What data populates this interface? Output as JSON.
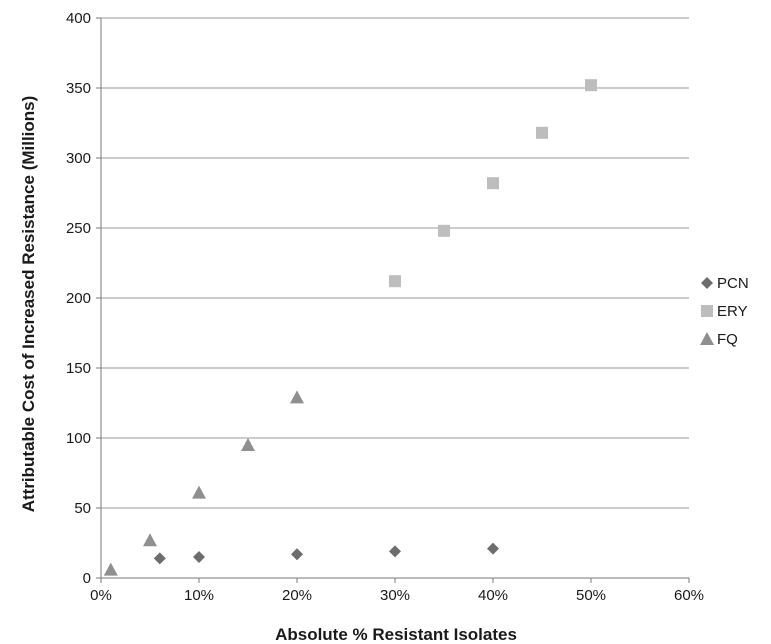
{
  "chart_data": {
    "type": "scatter",
    "title": "",
    "xlabel": "Absolute % Resistant Isolates",
    "ylabel": "Attributable Cost of Increased Resistance (Millions)",
    "xlim": [
      0,
      0.6
    ],
    "ylim": [
      0,
      400
    ],
    "x_ticks": [
      "0%",
      "10%",
      "20%",
      "30%",
      "40%",
      "50%",
      "60%"
    ],
    "y_ticks": [
      "0",
      "50",
      "100",
      "150",
      "200",
      "250",
      "300",
      "350",
      "400"
    ],
    "grid": "horizontal",
    "legend_position": "right",
    "series": [
      {
        "name": "PCN",
        "marker": "diamond",
        "color": "#6d6d6d",
        "points": [
          {
            "x": 0.06,
            "y": 14
          },
          {
            "x": 0.1,
            "y": 15
          },
          {
            "x": 0.2,
            "y": 17
          },
          {
            "x": 0.3,
            "y": 19
          },
          {
            "x": 0.4,
            "y": 21
          }
        ]
      },
      {
        "name": "ERY",
        "marker": "square",
        "color": "#bdbdbd",
        "points": [
          {
            "x": 0.3,
            "y": 212
          },
          {
            "x": 0.35,
            "y": 248
          },
          {
            "x": 0.4,
            "y": 282
          },
          {
            "x": 0.45,
            "y": 318
          },
          {
            "x": 0.5,
            "y": 352
          }
        ]
      },
      {
        "name": "FQ",
        "marker": "triangle",
        "color": "#8f8f8f",
        "points": [
          {
            "x": 0.01,
            "y": 6
          },
          {
            "x": 0.05,
            "y": 27
          },
          {
            "x": 0.1,
            "y": 61
          },
          {
            "x": 0.15,
            "y": 95
          },
          {
            "x": 0.2,
            "y": 129
          }
        ]
      }
    ]
  }
}
